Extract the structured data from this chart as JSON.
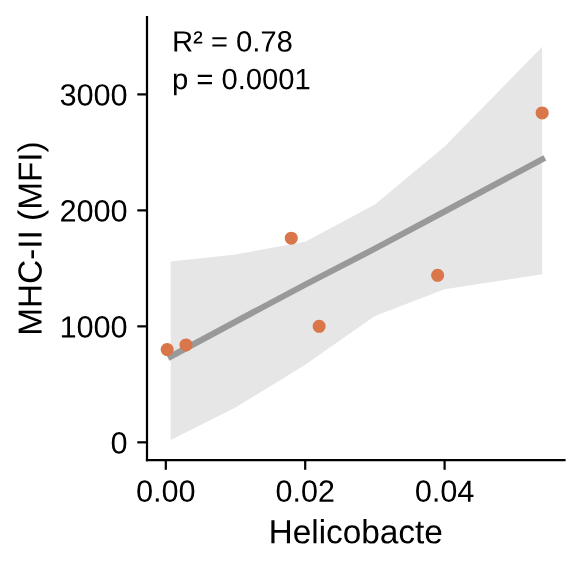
{
  "chart_data": {
    "type": "scatter",
    "xlabel": "Helicobacte",
    "ylabel": "MHC-II (MFI)",
    "xlim": [
      -0.0027,
      0.0572
    ],
    "ylim": [
      -153,
      3667
    ],
    "xticks": [
      {
        "value": 0,
        "label": "0.00"
      },
      {
        "value": 0.02,
        "label": "0.02"
      },
      {
        "value": 0.04,
        "label": "0.04"
      }
    ],
    "yticks": [
      0,
      1000,
      2000,
      3000
    ],
    "grid": false,
    "series": [
      {
        "type": "line",
        "color": "#999999",
        "line_style": "solid",
        "marker": "none",
        "x": [
          0.0007,
          0.01,
          0.02,
          0.03,
          0.04,
          0.054
        ],
        "values": [
          740,
          1040,
          1360,
          1670,
          1990,
          2440
        ],
        "lower": [
          20,
          300,
          670,
          1090,
          1320,
          1450
        ],
        "upper": [
          1560,
          1620,
          1730,
          2050,
          2550,
          3410
        ]
      },
      {
        "color": "#d9774a",
        "marker": "circle",
        "x": [
          0.0002,
          0.0029,
          0.018,
          0.022,
          0.039,
          0.054
        ],
        "values": [
          800,
          840,
          1760,
          1000,
          1440,
          2840
        ]
      }
    ],
    "annotations": [
      "R² = 0.78",
      "p = 0.0001"
    ]
  }
}
